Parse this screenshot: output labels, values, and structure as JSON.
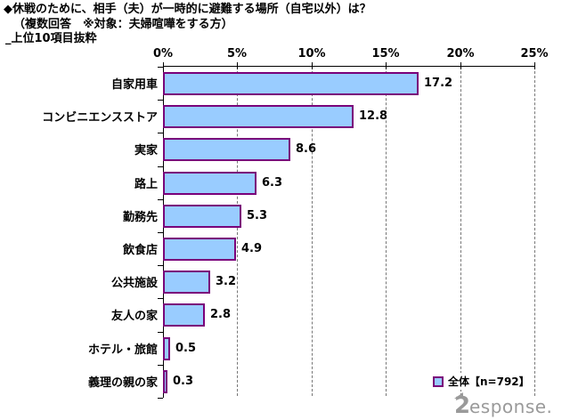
{
  "title": {
    "line1": "◆休戦のために、相手（夫）が一時的に避難する場所（自宅以外）は？",
    "line2": "（複数回答　※対象：夫婦喧嘩をする方）",
    "line3": "_上位10項目抜粋"
  },
  "axis": {
    "ticks": [
      "0%",
      "5%",
      "10%",
      "15%",
      "20%",
      "25%"
    ]
  },
  "legend": {
    "label": "全体【n=792】"
  },
  "logo": {
    "glyph": "2",
    "brand": "esponse."
  },
  "colors": {
    "bar_fill": "#99CCFF",
    "bar_border": "#7A007A",
    "grid": "#777777",
    "axis": "#000000",
    "logo": "#9A9A9A"
  },
  "chart_data": {
    "type": "bar",
    "orientation": "horizontal",
    "title": "◆休戦のために、相手（夫）が一時的に避難する場所（自宅以外）は？",
    "subtitle": "（複数回答　※対象：夫婦喧嘩をする方）",
    "note": "上位10項目抜粋",
    "categories": [
      "自家用車",
      "コンビニエンスストア",
      "実家",
      "路上",
      "勤務先",
      "飲食店",
      "公共施設",
      "友人の家",
      "ホテル・旅館",
      "義理の親の家"
    ],
    "values": [
      17.2,
      12.8,
      8.6,
      6.3,
      5.3,
      4.9,
      3.2,
      2.8,
      0.5,
      0.3
    ],
    "series_name": "全体【n=792】",
    "sample_n": 792,
    "xlabel": "",
    "ylabel": "",
    "xlim": [
      0,
      25
    ],
    "xticks": [
      0,
      5,
      10,
      15,
      20,
      25
    ],
    "grid": "vertical-dashed",
    "legend_position": "inside-bottom-right"
  }
}
